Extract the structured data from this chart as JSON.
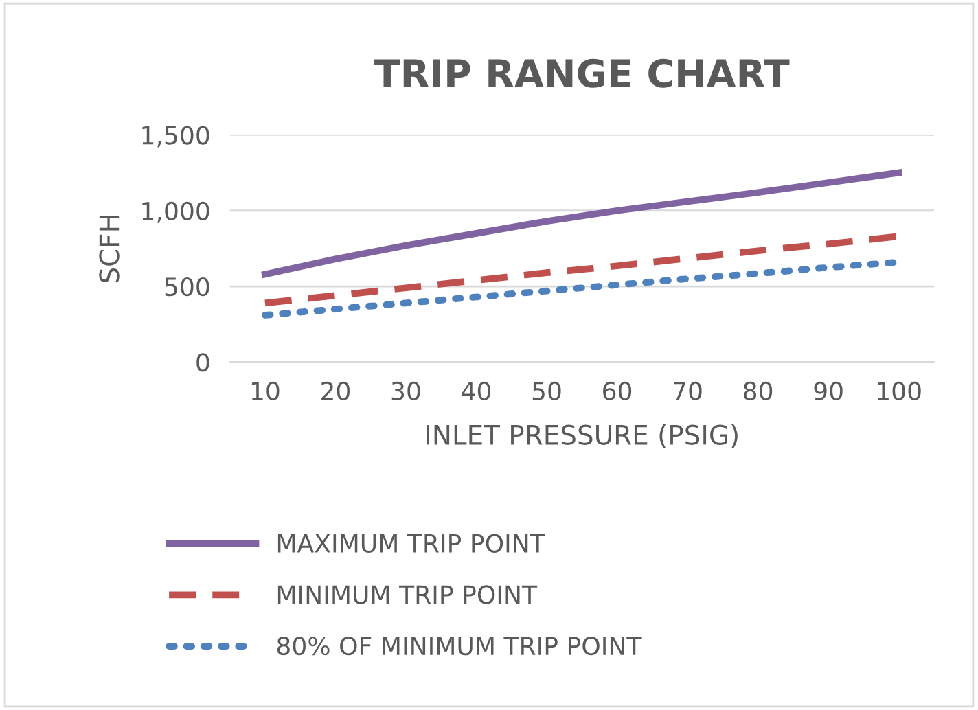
{
  "chart_data": {
    "type": "line",
    "title": "TRIP RANGE CHART",
    "xlabel": "INLET PRESSURE (PSIG)",
    "ylabel": "SCFH",
    "categories": [
      "10",
      "20",
      "30",
      "40",
      "50",
      "60",
      "70",
      "80",
      "90",
      "100"
    ],
    "series": [
      {
        "name": "MAXIMUM TRIP POINT",
        "color": "#8064a2",
        "line_style": "solid",
        "values": [
          580,
          680,
          770,
          850,
          930,
          1000,
          1060,
          1120,
          1185,
          1250
        ]
      },
      {
        "name": "MINIMUM TRIP POINT",
        "color": "#c0504d",
        "line_style": "dashed",
        "values": [
          390,
          440,
          490,
          540,
          590,
          635,
          685,
          735,
          780,
          830
        ]
      },
      {
        "name": "80% OF MINIMUM TRIP POINT",
        "color": "#4f81bd",
        "line_style": "dotted",
        "values": [
          310,
          350,
          390,
          430,
          470,
          510,
          550,
          585,
          625,
          660
        ]
      }
    ],
    "ylim": [
      0,
      1500
    ],
    "yticks": [
      {
        "value": 0,
        "label": "0"
      },
      {
        "value": 500,
        "label": "500"
      },
      {
        "value": 1000,
        "label": "1,000"
      },
      {
        "value": 1500,
        "label": "1,500"
      }
    ],
    "grid": "y",
    "legend": "bottom",
    "marker": "none"
  }
}
